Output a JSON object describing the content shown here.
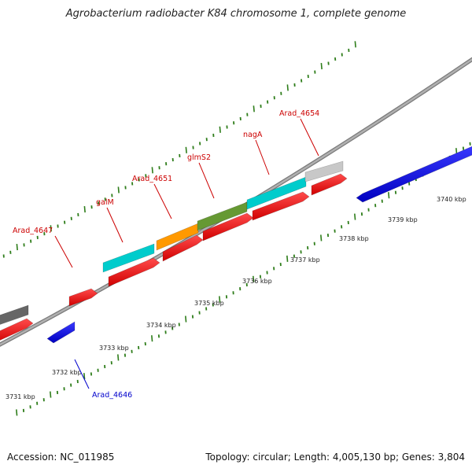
{
  "title": "Agrobacterium radiobacter K84 chromosome 1, complete genome",
  "footer": {
    "accession": "Accession: NC_011985",
    "summary": "Topology: circular; Length: 4,005,130 bp; Genes: 3,804"
  },
  "colors": {
    "backbone": "#909090",
    "forward_ticks": "#2e7d1a",
    "reverse_ticks": "#2e7d1a",
    "label_forward": "#cc0000",
    "label_reverse": "#0000cc"
  },
  "scale": {
    "unit": "kbp",
    "labels": [
      "3731 kbp",
      "3732 kbp",
      "3733 kbp",
      "3734 kbp",
      "3735 kbp",
      "3736 kbp",
      "3737 kbp",
      "3738 kbp",
      "3739 kbp",
      "3740 kbp"
    ]
  },
  "genes": [
    {
      "name": "Arad_4647",
      "strand": "+",
      "color": "#ff0000",
      "labeled": true
    },
    {
      "name": "galM",
      "strand": "+",
      "color": "#ff0000",
      "labeled": true
    },
    {
      "name": "Arad_4651",
      "strand": "+",
      "color": "#ff0000",
      "labeled": true
    },
    {
      "name": "glmS2",
      "strand": "+",
      "color": "#ff0000",
      "labeled": true
    },
    {
      "name": "nagA",
      "strand": "+",
      "color": "#ff0000",
      "labeled": true
    },
    {
      "name": "Arad_4654",
      "strand": "+",
      "color": "#ff0000",
      "labeled": true
    },
    {
      "name": "Arad_4646",
      "strand": "-",
      "color": "#0000ff",
      "labeled": true
    }
  ],
  "cog_bars": [
    {
      "color": "#00cccc"
    },
    {
      "color": "#ff9900"
    },
    {
      "color": "#669933"
    },
    {
      "color": "#00cccc"
    },
    {
      "color": "#c8c8c8"
    },
    {
      "color": "#666666"
    }
  ]
}
